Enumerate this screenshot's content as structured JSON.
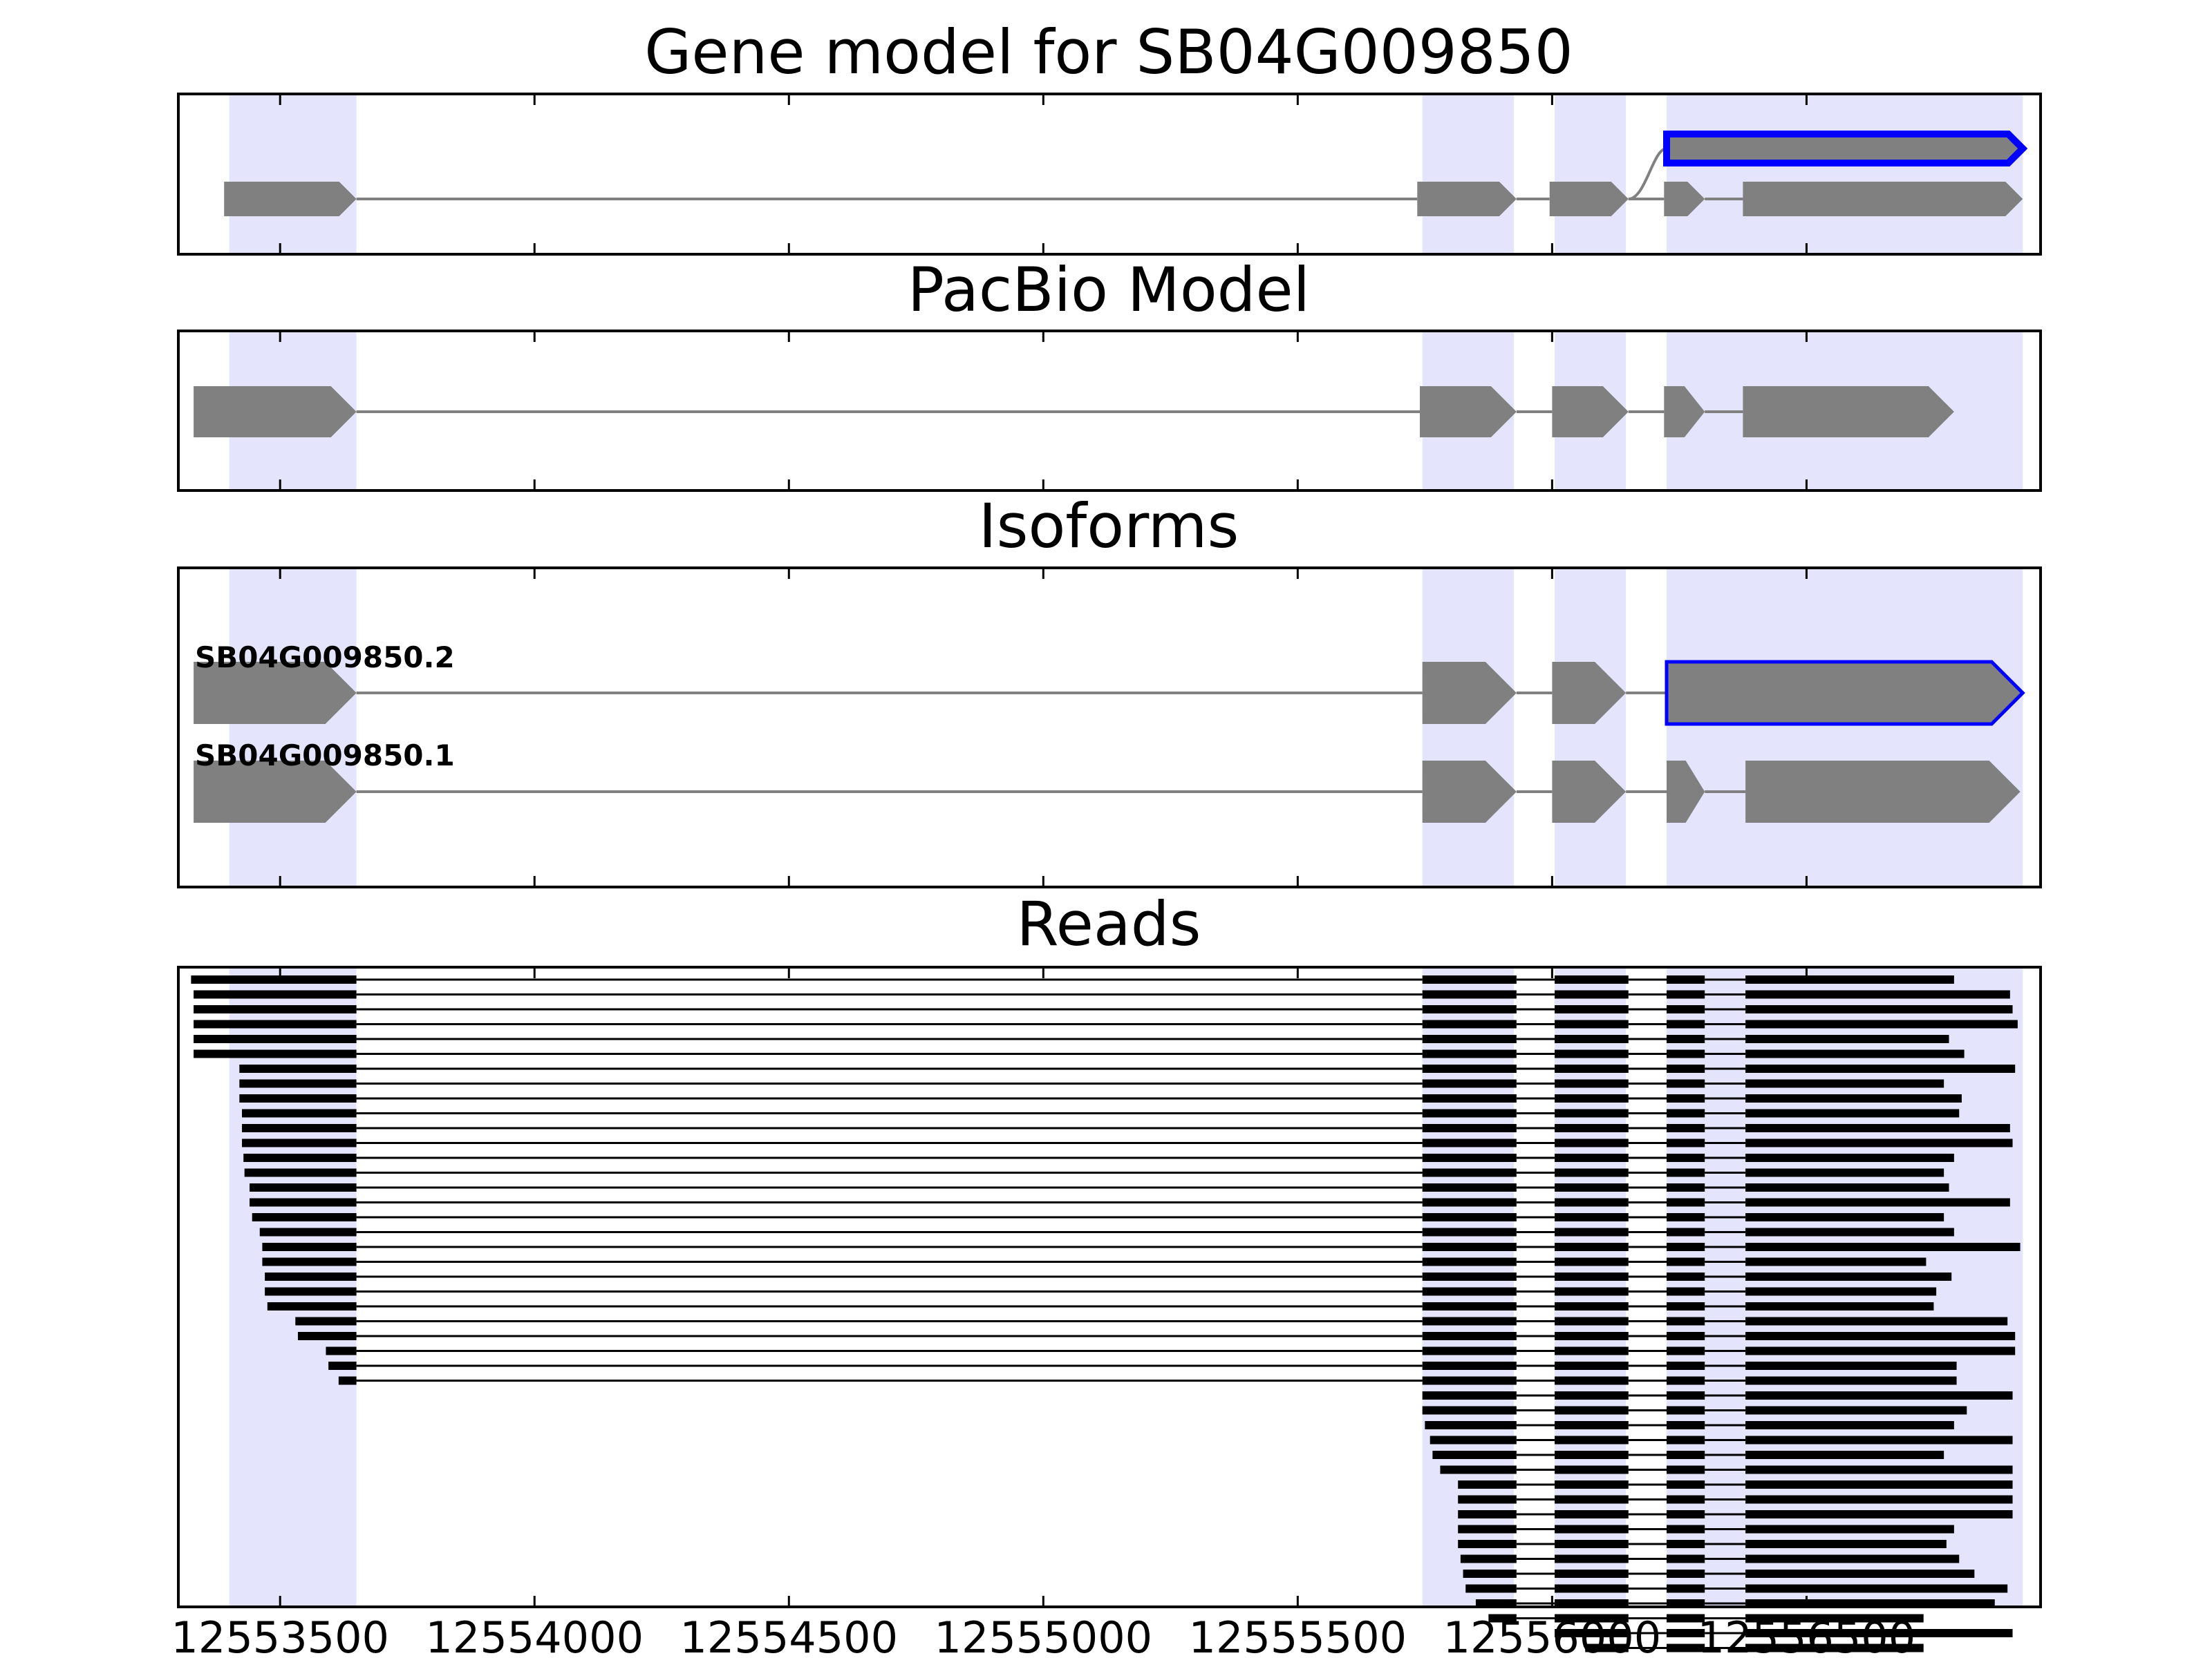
{
  "panels": {
    "gene_model": {
      "title": "Gene model for SB04G009850"
    },
    "pacbio": {
      "title": "PacBio Model"
    },
    "isoforms": {
      "title": "Isoforms",
      "labels": [
        "SB04G009850.2",
        "SB04G009850.1"
      ]
    },
    "reads": {
      "title": "Reads"
    }
  },
  "axis": {
    "xlim": [
      12553300,
      12556960
    ],
    "ticks": [
      12553500,
      12554000,
      12554500,
      12555000,
      12555500,
      12556000,
      12556500
    ],
    "tick_labels": [
      "12553500",
      "12554000",
      "12554500",
      "12555000",
      "12555500",
      "12556000",
      "12556500"
    ]
  },
  "colors": {
    "exon": "#808080",
    "highlight_outline": "#0000ff",
    "exon_region": "#e4e4fc",
    "read": "#000000",
    "intron": "#808080"
  },
  "chart_data": {
    "type": "gene_model",
    "exon_regions": [
      [
        12553400,
        12553650
      ],
      [
        12555745,
        12555925
      ],
      [
        12556005,
        12556145
      ],
      [
        12556225,
        12556925
      ]
    ],
    "gene_model": {
      "transcripts": [
        {
          "exons": [
            [
              12553390,
              12553650
            ],
            [
              12555735,
              12555930
            ],
            [
              12555995,
              12556150
            ],
            [
              12556220,
              12556300
            ],
            [
              12556375,
              12556925
            ]
          ]
        }
      ],
      "highlight": {
        "start": 12556225,
        "end": 12556925
      }
    },
    "pacbio_model": {
      "exons": [
        [
          12553330,
          12553650
        ],
        [
          12555740,
          12555930
        ],
        [
          12556000,
          12556150
        ],
        [
          12556220,
          12556300
        ],
        [
          12556375,
          12556790
        ]
      ]
    },
    "isoforms": [
      {
        "name": "SB04G009850.2",
        "exons": [
          [
            12553330,
            12553650
          ],
          [
            12555745,
            12555930
          ],
          [
            12556000,
            12556145
          ],
          [
            12556225,
            12556925
          ]
        ],
        "highlight_last": true
      },
      {
        "name": "SB04G009850.1",
        "exons": [
          [
            12553330,
            12553650
          ],
          [
            12555745,
            12555930
          ],
          [
            12556000,
            12556145
          ],
          [
            12556225,
            12556300
          ],
          [
            12556380,
            12556920
          ]
        ],
        "highlight_last": false
      }
    ],
    "reads_junction": [
      12553650,
      12555745,
      12555930,
      12556005,
      12556150,
      12556225,
      12556300,
      12556380
    ],
    "reads_long": [
      {
        "start": 12553325,
        "end": 12556790
      },
      {
        "start": 12553330,
        "end": 12556900
      },
      {
        "start": 12553330,
        "end": 12556905
      },
      {
        "start": 12553330,
        "end": 12556915
      },
      {
        "start": 12553330,
        "end": 12556780
      },
      {
        "start": 12553330,
        "end": 12556810
      },
      {
        "start": 12553420,
        "end": 12556910
      },
      {
        "start": 12553420,
        "end": 12556770
      },
      {
        "start": 12553420,
        "end": 12556805
      },
      {
        "start": 12553425,
        "end": 12556800
      },
      {
        "start": 12553425,
        "end": 12556900
      },
      {
        "start": 12553425,
        "end": 12556905
      },
      {
        "start": 12553428,
        "end": 12556790
      },
      {
        "start": 12553430,
        "end": 12556770
      },
      {
        "start": 12553440,
        "end": 12556780
      },
      {
        "start": 12553440,
        "end": 12556900
      },
      {
        "start": 12553445,
        "end": 12556770
      },
      {
        "start": 12553460,
        "end": 12556790
      },
      {
        "start": 12553465,
        "end": 12556920
      },
      {
        "start": 12553465,
        "end": 12556735
      },
      {
        "start": 12553470,
        "end": 12556785
      },
      {
        "start": 12553470,
        "end": 12556755
      },
      {
        "start": 12553475,
        "end": 12556750
      },
      {
        "start": 12553530,
        "end": 12556895
      },
      {
        "start": 12553535,
        "end": 12556910
      },
      {
        "start": 12553590,
        "end": 12556910
      },
      {
        "start": 12553595,
        "end": 12556795
      },
      {
        "start": 12553615,
        "end": 12556795
      }
    ],
    "reads_short": [
      {
        "start": 12555745,
        "end": 12556905
      },
      {
        "start": 12555745,
        "end": 12556815
      },
      {
        "start": 12555750,
        "end": 12556790
      },
      {
        "start": 12555760,
        "end": 12556905
      },
      {
        "start": 12555765,
        "end": 12556770
      },
      {
        "start": 12555780,
        "end": 12556905
      },
      {
        "start": 12555815,
        "end": 12556905
      },
      {
        "start": 12555815,
        "end": 12556905
      },
      {
        "start": 12555815,
        "end": 12556905
      },
      {
        "start": 12555815,
        "end": 12556790
      },
      {
        "start": 12555815,
        "end": 12556775
      },
      {
        "start": 12555820,
        "end": 12556800
      },
      {
        "start": 12555825,
        "end": 12556830
      },
      {
        "start": 12555830,
        "end": 12556895
      },
      {
        "start": 12555850,
        "end": 12556870
      },
      {
        "start": 12555875,
        "end": 12556730
      },
      {
        "start": 12555945,
        "end": 12556905
      },
      {
        "start": 12556065,
        "end": 12556730
      },
      {
        "start": 12556065,
        "end": 12556730
      }
    ],
    "reads_last_junction_highlight": [
      12556300,
      12556380
    ]
  }
}
